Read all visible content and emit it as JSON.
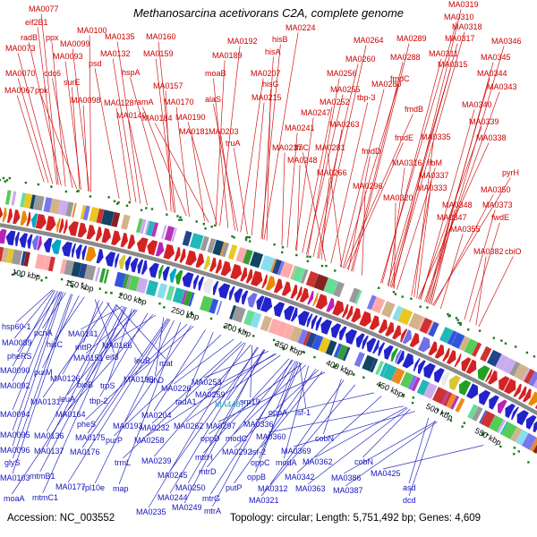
{
  "title": "Methanosarcina acetivorans C2A, complete genome",
  "footer": {
    "accession": "Accession: NC_003552",
    "stats": "Topology: circular; Length: 5,751,492 bp; Genes: 4,609"
  },
  "colors": {
    "forward_label": "#cc0000",
    "reverse_label": "#1414bb",
    "highlight_label": "#2299bb",
    "backbone": "#8a8a8a",
    "tick_dot": "#1b7a1b",
    "forward_arrow": "#d42222",
    "reverse_arrow": "#2323cc",
    "arrow_alt": [
      "#22a022",
      "#e88a00",
      "#00a8c8",
      "#b822b8",
      "#d8c830",
      "#7070e8",
      "#e8e8e8"
    ],
    "feature_palette": [
      "#3355dd",
      "#cc3333",
      "#33a033",
      "#e8c822",
      "#22b8b8",
      "#b833b8",
      "#ee8822",
      "#7777ee",
      "#999999",
      "#224488",
      "#882222",
      "#55cc55",
      "#ccaaee",
      "#ffaaaa",
      "#88ddee",
      "#d2b48c",
      "#114466",
      "#66dd99"
    ]
  },
  "scale_unit": "kbp",
  "scale": [
    {
      "kbp": 100,
      "label": "100 kbp"
    },
    {
      "kbp": 150,
      "label": "150 kbp"
    },
    {
      "kbp": 200,
      "label": "200 kbp"
    },
    {
      "kbp": 250,
      "label": "250 kbp"
    },
    {
      "kbp": 300,
      "label": "300 kbp"
    },
    {
      "kbp": 350,
      "label": "350 kbp"
    },
    {
      "kbp": 400,
      "label": "400 kbp"
    },
    {
      "kbp": 450,
      "label": "450 kbp"
    },
    {
      "kbp": 500,
      "label": "500 kbp"
    },
    {
      "kbp": 550,
      "label": "550 kbp"
    }
  ],
  "label_format": [
    "text",
    "x",
    "y",
    "gene_no"
  ],
  "highlight": "MA4487",
  "forward_genes": [
    [
      "MA0077",
      32,
      13,
      77
    ],
    [
      "eif2B1",
      28,
      28,
      76
    ],
    [
      "radB",
      23,
      45,
      79
    ],
    [
      "ppx",
      51,
      45,
      82
    ],
    [
      "MA0100",
      86,
      37,
      100
    ],
    [
      "MA0073",
      6,
      57,
      73
    ],
    [
      "MA0099",
      67,
      52,
      99
    ],
    [
      "MA0093",
      59,
      66,
      93
    ],
    [
      "MA0070",
      6,
      85,
      70
    ],
    [
      "cdc6",
      49,
      85,
      87
    ],
    [
      "surE",
      71,
      95,
      92
    ],
    [
      "MA0067",
      5,
      104,
      67
    ],
    [
      "ppk",
      39,
      104,
      90
    ],
    [
      "MA0098",
      79,
      115,
      98
    ],
    [
      "psd",
      99,
      74,
      120
    ],
    [
      "MA0135",
      117,
      44,
      135
    ],
    [
      "MA0132",
      112,
      63,
      132
    ],
    [
      "hspA",
      136,
      84,
      154
    ],
    [
      "MA0128",
      116,
      118,
      128
    ],
    [
      "MA0140",
      130,
      132,
      140
    ],
    [
      "MA0160",
      163,
      44,
      160
    ],
    [
      "MA0159",
      160,
      63,
      159
    ],
    [
      "MA0157",
      171,
      99,
      157
    ],
    [
      "ramA",
      150,
      117,
      168
    ],
    [
      "MA0170",
      183,
      117,
      170
    ],
    [
      "MA0184",
      159,
      135,
      184
    ],
    [
      "MA0190",
      196,
      134,
      190
    ],
    [
      "MA0181",
      200,
      150,
      181
    ],
    [
      "MA0203",
      233,
      150,
      203
    ],
    [
      "MA0192",
      254,
      49,
      192
    ],
    [
      "MA0189",
      237,
      65,
      189
    ],
    [
      "moaB",
      229,
      85,
      198
    ],
    [
      "MA0207",
      280,
      85,
      207
    ],
    [
      "alaS",
      229,
      114,
      205
    ],
    [
      "MA0215",
      281,
      112,
      215
    ],
    [
      "truA",
      252,
      163,
      212
    ],
    [
      "hisB",
      304,
      47,
      222
    ],
    [
      "hisA",
      296,
      61,
      223
    ],
    [
      "hisG",
      293,
      97,
      226
    ],
    [
      "MA0224",
      319,
      34,
      224
    ],
    [
      "MA0241",
      318,
      146,
      241
    ],
    [
      "MA0237",
      304,
      168,
      237
    ],
    [
      "MA0248",
      321,
      182,
      248
    ],
    [
      "thiC",
      329,
      168,
      269
    ],
    [
      "MA0247",
      336,
      129,
      247
    ],
    [
      "MA0252",
      357,
      117,
      252
    ],
    [
      "MA0263",
      368,
      142,
      263
    ],
    [
      "MA0281",
      352,
      168,
      281
    ],
    [
      "MA0266",
      354,
      196,
      266
    ],
    [
      "MA0256",
      365,
      85,
      256
    ],
    [
      "MA0260",
      386,
      69,
      260
    ],
    [
      "MA0264",
      395,
      48,
      264
    ],
    [
      "MA0255",
      369,
      103,
      255
    ],
    [
      "tbp-3",
      399,
      112,
      273
    ],
    [
      "MA0280",
      415,
      97,
      280
    ],
    [
      "MA0289",
      443,
      46,
      289
    ],
    [
      "MA0288",
      436,
      67,
      288
    ],
    [
      "fmdC",
      436,
      91,
      282
    ],
    [
      "fmdB",
      452,
      125,
      283
    ],
    [
      "fmdE",
      441,
      157,
      285
    ],
    [
      "fmdD",
      404,
      172,
      286
    ],
    [
      "MA0316",
      438,
      185,
      316
    ],
    [
      "fibM",
      477,
      185,
      322
    ],
    [
      "MA0296",
      394,
      211,
      296
    ],
    [
      "MA0320",
      428,
      224,
      320
    ],
    [
      "MA0337",
      468,
      199,
      337
    ],
    [
      "MA0333",
      466,
      213,
      333
    ],
    [
      "MA0335",
      470,
      156,
      335
    ],
    [
      "MA0311",
      479,
      63,
      311
    ],
    [
      "MA0317",
      497,
      46,
      317
    ],
    [
      "MA0310",
      496,
      22,
      310
    ],
    [
      "MA0318",
      505,
      33,
      318
    ],
    [
      "MA0319",
      501,
      8,
      319
    ],
    [
      "MA0315",
      489,
      75,
      315
    ],
    [
      "MA0345",
      537,
      67,
      345
    ],
    [
      "MA0346",
      549,
      49,
      346
    ],
    [
      "MA0344",
      533,
      85,
      344
    ],
    [
      "MA0343",
      544,
      100,
      343
    ],
    [
      "MA0340",
      516,
      120,
      340
    ],
    [
      "MA0339",
      524,
      139,
      339
    ],
    [
      "MA0338",
      532,
      157,
      338
    ],
    [
      "pyrH",
      561,
      196,
      349
    ],
    [
      "MA0350",
      537,
      215,
      350
    ],
    [
      "MA0348",
      494,
      232,
      348
    ],
    [
      "MA0373",
      539,
      232,
      373
    ],
    [
      "fwdE",
      549,
      246,
      377
    ],
    [
      "MA0347",
      488,
      246,
      347
    ],
    [
      "MA0355",
      503,
      259,
      355
    ],
    [
      "MA0382",
      529,
      284,
      382
    ],
    [
      "cbiO",
      564,
      284,
      384
    ]
  ],
  "reverse_genes": [
    [
      "hsp60-1",
      2,
      368,
      88
    ],
    [
      "pcnA",
      38,
      375,
      98
    ],
    [
      "MA0141",
      76,
      376,
      141
    ],
    [
      "MA0089",
      2,
      386,
      89
    ],
    [
      "hisC",
      52,
      388,
      112
    ],
    [
      "mttP",
      84,
      391,
      123
    ],
    [
      "MA0166",
      114,
      389,
      166
    ],
    [
      "pheRS",
      8,
      401,
      94
    ],
    [
      "MA0151",
      82,
      403,
      151
    ],
    [
      "eif3",
      118,
      402,
      120
    ],
    [
      "leuB",
      150,
      406,
      129
    ],
    [
      "mat",
      178,
      409,
      136
    ],
    [
      "MA0090",
      0,
      417,
      90
    ],
    [
      "purM",
      38,
      419,
      108
    ],
    [
      "MA0126",
      56,
      426,
      126
    ],
    [
      "bioB",
      86,
      433,
      142
    ],
    [
      "trpS",
      112,
      434,
      148
    ],
    [
      "MA0195",
      138,
      427,
      195
    ],
    [
      "fdhD",
      164,
      428,
      172
    ],
    [
      "MA0226",
      180,
      437,
      226
    ],
    [
      "MA0253",
      214,
      430,
      253
    ],
    [
      "MA0259",
      218,
      444,
      259
    ],
    [
      "srp19",
      268,
      452,
      240
    ],
    [
      "MA0092",
      0,
      434,
      92
    ],
    [
      "leuA",
      66,
      449,
      152
    ],
    [
      "tbp-2",
      100,
      451,
      160
    ],
    [
      "MA0204",
      158,
      467,
      204
    ],
    [
      "tadA1",
      196,
      452,
      210
    ],
    [
      "MA4487",
      240,
      455,
      250
    ],
    [
      "oppA",
      300,
      464,
      275
    ],
    [
      "isf-1",
      330,
      464,
      277
    ],
    [
      "MA0094",
      0,
      466,
      94
    ],
    [
      "MA0131",
      34,
      452,
      131
    ],
    [
      "MA0164",
      62,
      466,
      164
    ],
    [
      "pheS",
      86,
      477,
      190
    ],
    [
      "MA0193",
      126,
      479,
      193
    ],
    [
      "MA0232",
      156,
      481,
      232
    ],
    [
      "MA0262",
      194,
      479,
      262
    ],
    [
      "MA0297",
      230,
      479,
      297
    ],
    [
      "MA0336",
      272,
      477,
      336
    ],
    [
      "cobN",
      352,
      493,
      310
    ],
    [
      "MA0095",
      0,
      489,
      95
    ],
    [
      "MA0136",
      38,
      490,
      136
    ],
    [
      "MA0175",
      84,
      492,
      175
    ],
    [
      "purP",
      118,
      495,
      216
    ],
    [
      "MA0258",
      150,
      495,
      258
    ],
    [
      "oppD",
      224,
      493,
      279
    ],
    [
      "modC",
      252,
      493,
      282
    ],
    [
      "MA0360",
      286,
      491,
      360
    ],
    [
      "MA0096",
      0,
      506,
      96
    ],
    [
      "MA0137",
      38,
      507,
      137
    ],
    [
      "MA0176",
      78,
      508,
      176
    ],
    [
      "trmL",
      128,
      520,
      234
    ],
    [
      "MA0239",
      158,
      518,
      239
    ],
    [
      "mtrH",
      218,
      514,
      269
    ],
    [
      "MA0292",
      248,
      508,
      292
    ],
    [
      "isf-2",
      280,
      508,
      295
    ],
    [
      "MA0369",
      314,
      507,
      369
    ],
    [
      "cobN",
      396,
      519,
      365
    ],
    [
      "oppC",
      280,
      520,
      278
    ],
    [
      "modA",
      308,
      520,
      284
    ],
    [
      "MA0362",
      338,
      519,
      362
    ],
    [
      "glyS",
      5,
      520,
      102
    ],
    [
      "MA0103",
      0,
      537,
      103
    ],
    [
      "mtmB1",
      33,
      535,
      144
    ],
    [
      "MA0245",
      176,
      534,
      245
    ],
    [
      "mtrD",
      222,
      530,
      272
    ],
    [
      "oppB",
      276,
      536,
      276
    ],
    [
      "MA0342",
      318,
      536,
      342
    ],
    [
      "MA0386",
      370,
      537,
      386
    ],
    [
      "MA0425",
      414,
      532,
      425
    ],
    [
      "MA0177",
      62,
      547,
      177
    ],
    [
      "rpl10e",
      92,
      548,
      180
    ],
    [
      "map",
      126,
      549,
      185
    ],
    [
      "MA0250",
      196,
      548,
      250
    ],
    [
      "putP",
      252,
      548,
      290
    ],
    [
      "MA0312",
      288,
      549,
      312
    ],
    [
      "MA0363",
      330,
      549,
      363
    ],
    [
      "MA0387",
      372,
      551,
      387
    ],
    [
      "asd",
      450,
      548,
      380
    ],
    [
      "moaA",
      4,
      560,
      150
    ],
    [
      "mtmC1",
      36,
      559,
      143
    ],
    [
      "MA0244",
      176,
      559,
      244
    ],
    [
      "mtrG",
      226,
      560,
      274
    ],
    [
      "MA0321",
      278,
      562,
      321
    ],
    [
      "dcd",
      450,
      562,
      385
    ],
    [
      "MA0235",
      152,
      575,
      235
    ],
    [
      "MA0249",
      192,
      570,
      249
    ],
    [
      "mtrA",
      228,
      574,
      271
    ]
  ]
}
